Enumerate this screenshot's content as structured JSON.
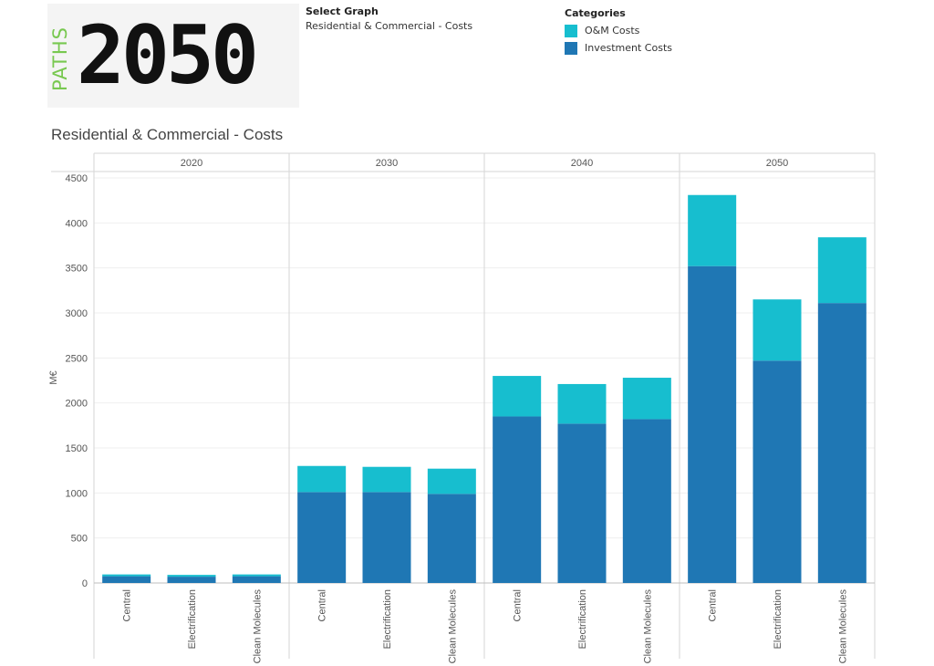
{
  "logo": {
    "paths_text": "PATHS",
    "year_text": "2050"
  },
  "select_graph": {
    "label": "Select Graph",
    "value": "Residential & Commercial - Costs"
  },
  "legend": {
    "label": "Categories",
    "items": [
      {
        "name": "O&M Costs",
        "color": "#17becf"
      },
      {
        "name": "Investment Costs",
        "color": "#1f77b4"
      }
    ]
  },
  "chart_data": {
    "type": "bar",
    "stacked": true,
    "title": "Residential & Commercial - Costs",
    "ylabel": "M€",
    "ylim": [
      0,
      4500
    ],
    "yticks": [
      0,
      500,
      1000,
      1500,
      2000,
      2500,
      3000,
      3500,
      4000,
      4500
    ],
    "groups": [
      "2020",
      "2030",
      "2040",
      "2050"
    ],
    "categories": [
      "Central",
      "Electrification",
      "Clean Molecules"
    ],
    "series": [
      {
        "name": "Investment Costs",
        "color": "#1f77b4",
        "values": [
          [
            75,
            70,
            75
          ],
          [
            1010,
            1010,
            990
          ],
          [
            1850,
            1770,
            1820
          ],
          [
            3520,
            2470,
            3110
          ]
        ]
      },
      {
        "name": "O&M Costs",
        "color": "#17becf",
        "values": [
          [
            20,
            20,
            20
          ],
          [
            290,
            280,
            280
          ],
          [
            450,
            440,
            460
          ],
          [
            790,
            680,
            730
          ]
        ]
      }
    ],
    "grid": true,
    "legend_position": "top"
  }
}
